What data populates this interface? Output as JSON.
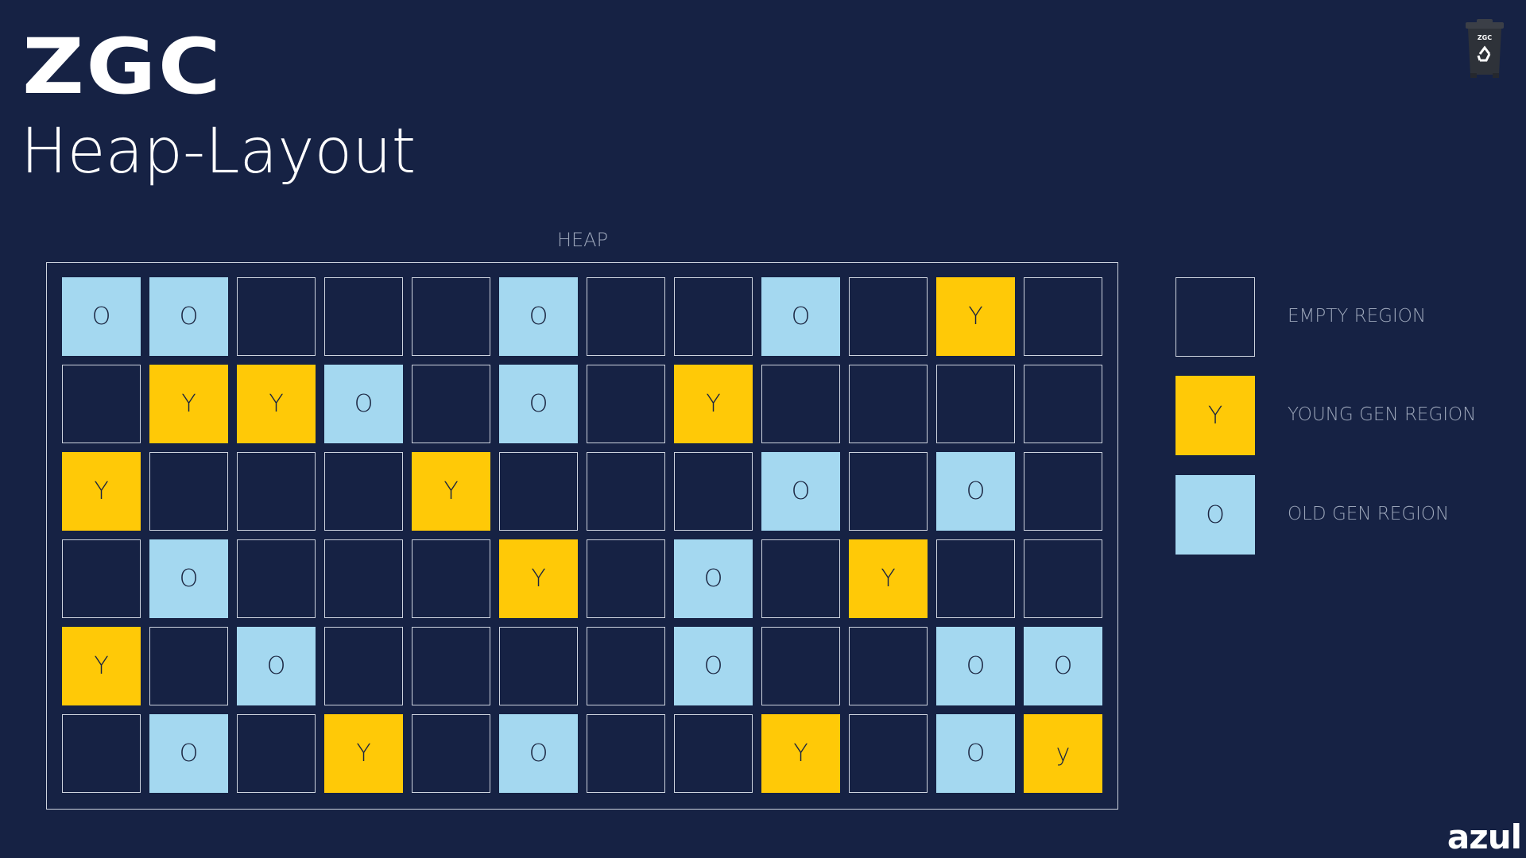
{
  "header": {
    "logo": "ZGC",
    "title": "Heap-Layout",
    "bin_logo": "ZGC"
  },
  "heap": {
    "label": "HEAP",
    "rows": [
      [
        "O",
        "O",
        "",
        "",
        "",
        "O",
        "",
        "",
        "O",
        "",
        "Y",
        ""
      ],
      [
        "",
        "Y",
        "Y",
        "O",
        "",
        "O",
        "",
        "Y",
        "",
        "",
        "",
        ""
      ],
      [
        "Y",
        "",
        "",
        "",
        "Y",
        "",
        "",
        "",
        "O",
        "",
        "O",
        ""
      ],
      [
        "",
        "O",
        "",
        "",
        "",
        "Y",
        "",
        "O",
        "",
        "Y",
        "",
        ""
      ],
      [
        "Y",
        "",
        "O",
        "",
        "",
        "",
        "",
        "O",
        "",
        "",
        "O",
        "O"
      ],
      [
        "",
        "O",
        "",
        "Y",
        "",
        "O",
        "",
        "",
        "Y",
        "",
        "O",
        "y"
      ]
    ]
  },
  "legend": [
    {
      "type": "E",
      "symbol": "",
      "label": "EMPTY REGION"
    },
    {
      "type": "Y",
      "symbol": "Y",
      "label": "YOUNG GEN REGION"
    },
    {
      "type": "O",
      "symbol": "O",
      "label": "OLD GEN REGION"
    }
  ],
  "brand": "azul",
  "colors": {
    "background": "#162244",
    "young": "#ffc907",
    "old": "#a4d8f0",
    "border": "#cdd3de"
  },
  "icons": {
    "bin": "recycle-bin-icon"
  }
}
